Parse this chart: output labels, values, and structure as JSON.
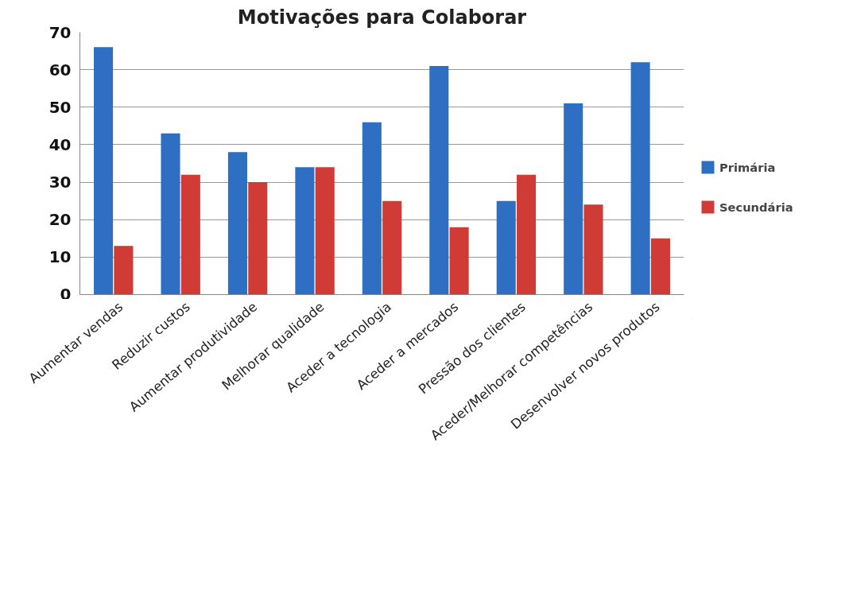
{
  "chart_data": {
    "type": "bar",
    "title": "Motivações para Colaborar",
    "categories": [
      "Aumentar vendas",
      "Reduzir custos",
      "Aumentar produtividade",
      "Melhorar qualidade",
      "Aceder a tecnologia",
      "Aceder a mercados",
      "Pressão dos clientes",
      "Aceder/Melhorar competências",
      "Desenvolver novos produtos"
    ],
    "series": [
      {
        "name": "Primária",
        "color": "#2e6fc4",
        "values": [
          66,
          43,
          38,
          34,
          46,
          61,
          25,
          51,
          62
        ]
      },
      {
        "name": "Secundária",
        "color": "#d13b36",
        "values": [
          13,
          32,
          30,
          34,
          25,
          18,
          32,
          24,
          15
        ]
      }
    ],
    "ylim": [
      0,
      70
    ],
    "yticks": [
      0,
      10,
      20,
      30,
      40,
      50,
      60,
      70
    ],
    "grid": "y",
    "legend": "right"
  }
}
